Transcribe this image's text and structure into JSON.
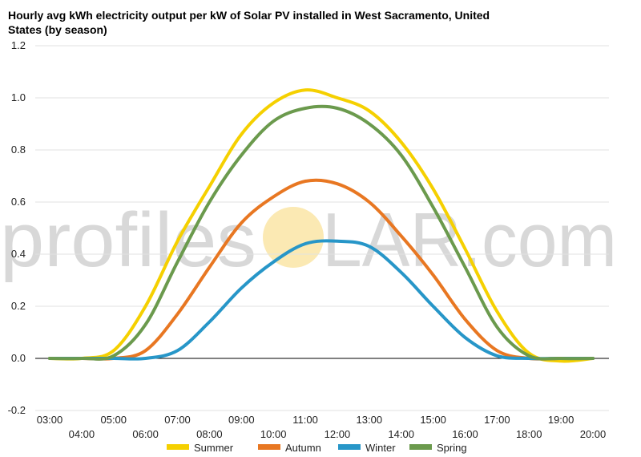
{
  "chart_data": {
    "type": "line",
    "title": "Hourly avg kWh electricity output per kW of Solar PV installed in West Sacramento, United States (by season)",
    "xlabel": "",
    "ylabel": "",
    "x": [
      "03:00",
      "04:00",
      "05:00",
      "06:00",
      "07:00",
      "08:00",
      "09:00",
      "10:00",
      "11:00",
      "12:00",
      "13:00",
      "14:00",
      "15:00",
      "16:00",
      "17:00",
      "18:00",
      "19:00",
      "20:00"
    ],
    "ylim": [
      -0.2,
      1.2
    ],
    "yticks": [
      "-0.2",
      "0.0",
      "0.2",
      "0.4",
      "0.6",
      "0.8",
      "1.0",
      "1.2"
    ],
    "grid": true,
    "legend": "bottom",
    "series": [
      {
        "name": "Summer",
        "color": "#f5d000",
        "values": [
          0.0,
          0.0,
          0.03,
          0.2,
          0.45,
          0.66,
          0.86,
          0.98,
          1.03,
          1.0,
          0.95,
          0.83,
          0.65,
          0.42,
          0.18,
          0.02,
          -0.01,
          0.0
        ]
      },
      {
        "name": "Autumn",
        "color": "#e87722",
        "values": [
          0.0,
          0.0,
          0.0,
          0.03,
          0.17,
          0.35,
          0.52,
          0.62,
          0.68,
          0.67,
          0.6,
          0.47,
          0.32,
          0.15,
          0.03,
          0.0,
          0.0,
          0.0
        ]
      },
      {
        "name": "Winter",
        "color": "#2796c8",
        "values": [
          0.0,
          0.0,
          0.0,
          0.0,
          0.03,
          0.14,
          0.27,
          0.37,
          0.44,
          0.45,
          0.43,
          0.33,
          0.2,
          0.08,
          0.01,
          0.0,
          0.0,
          0.0
        ]
      },
      {
        "name": "Spring",
        "color": "#6b9a4d",
        "values": [
          0.0,
          0.0,
          0.01,
          0.13,
          0.37,
          0.6,
          0.78,
          0.91,
          0.96,
          0.96,
          0.9,
          0.78,
          0.58,
          0.35,
          0.12,
          0.01,
          0.0,
          0.0
        ]
      }
    ]
  },
  "watermark": {
    "left": "profiles",
    "right": "LAR.com"
  }
}
